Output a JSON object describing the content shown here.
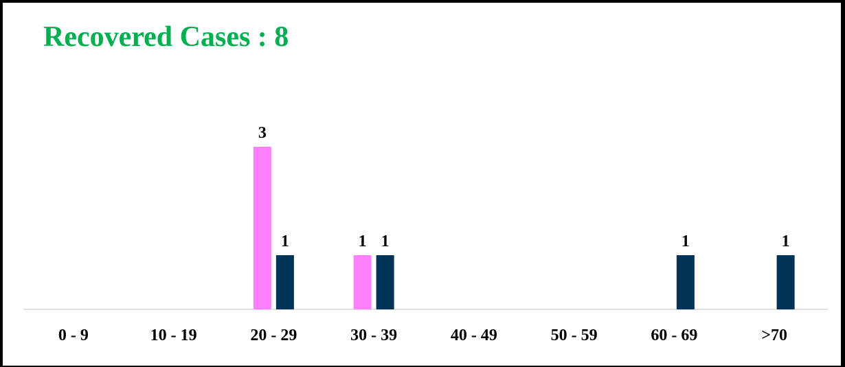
{
  "chart_data": {
    "type": "bar",
    "title": "Recovered Cases : 8",
    "title_color": "#00b050",
    "categories": [
      "0 - 9",
      "10 - 19",
      "20 - 29",
      "30 - 39",
      "40 - 49",
      "50 - 59",
      "60 - 69",
      ">70"
    ],
    "series": [
      {
        "color": "#ff80ff",
        "values": [
          0,
          0,
          3,
          1,
          0,
          0,
          0,
          0
        ]
      },
      {
        "color": "#003355",
        "values": [
          0,
          0,
          1,
          1,
          0,
          0,
          1,
          1
        ]
      }
    ],
    "ylim": [
      0,
      3
    ],
    "grid": false,
    "legend": "none",
    "data_labels": true
  }
}
